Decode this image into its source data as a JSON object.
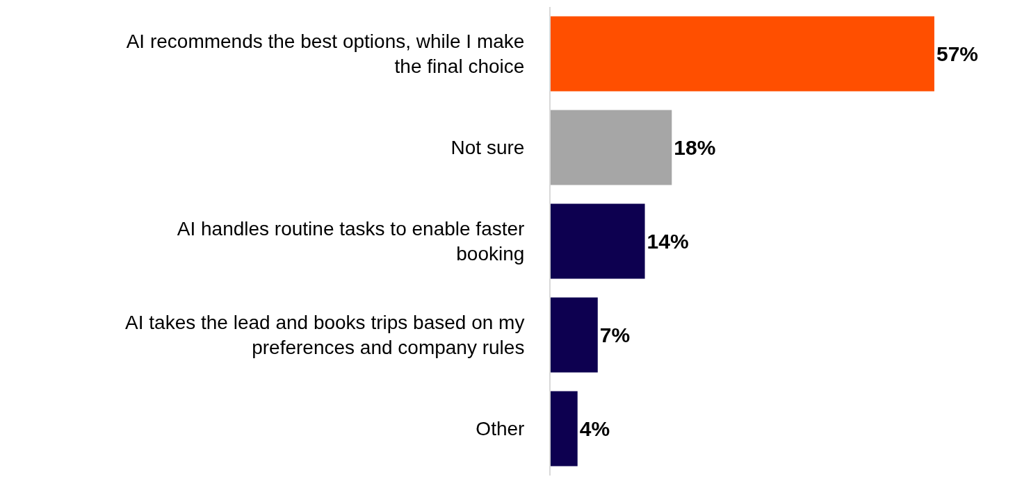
{
  "chart_data": {
    "type": "bar",
    "orientation": "horizontal",
    "categories": [
      "AI recommends the best options, while I make the final choice",
      "Not sure",
      "AI handles routine tasks to enable faster booking",
      "AI takes the lead and books trips based on my preferences and company rules",
      "Other"
    ],
    "values": [
      57,
      18,
      14,
      7,
      4
    ],
    "colors": [
      "#ff4f00",
      "#a6a6a6",
      "#0d0050",
      "#0d0050",
      "#0d0050"
    ],
    "value_labels": [
      "57%",
      "18%",
      "14%",
      "7%",
      "4%"
    ],
    "tick_labels": "y"
  }
}
